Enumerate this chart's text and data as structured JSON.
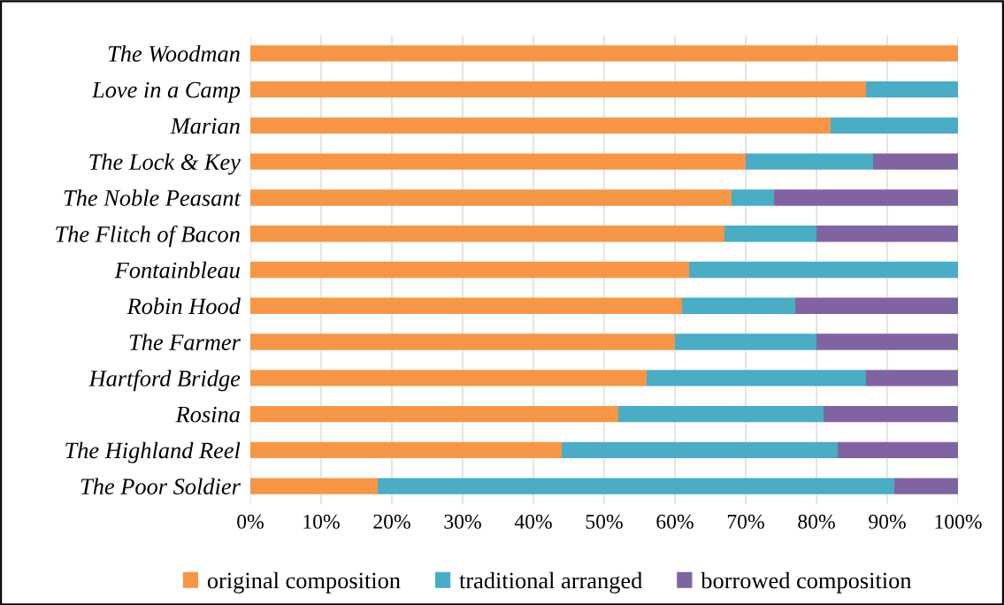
{
  "chart_data": {
    "type": "bar",
    "orientation": "horizontal",
    "stacked": true,
    "categories": [
      "The Woodman",
      "Love in a Camp",
      "Marian",
      "The Lock & Key",
      "The Noble Peasant",
      "The Flitch of Bacon",
      "Fontainbleau",
      "Robin Hood",
      "The Farmer",
      "Hartford Bridge",
      "Rosina",
      "The Highland Reel",
      "The Poor Soldier"
    ],
    "series": [
      {
        "name": "original composition",
        "color": "#f79646",
        "values": [
          100,
          87,
          82,
          70,
          68,
          67,
          62,
          61,
          60,
          56,
          52,
          44,
          18
        ]
      },
      {
        "name": "traditional arranged",
        "color": "#4bacc6",
        "values": [
          0,
          13,
          18,
          18,
          6,
          13,
          38,
          16,
          20,
          31,
          29,
          39,
          73
        ]
      },
      {
        "name": "borrowed composition",
        "color": "#8064a2",
        "values": [
          0,
          0,
          0,
          12,
          26,
          20,
          0,
          23,
          20,
          13,
          19,
          17,
          9
        ]
      }
    ],
    "xlim": [
      0,
      100
    ],
    "xticks": [
      {
        "value": 0,
        "label": "0%"
      },
      {
        "value": 10,
        "label": "10%"
      },
      {
        "value": 20,
        "label": "20%"
      },
      {
        "value": 30,
        "label": "30%"
      },
      {
        "value": 40,
        "label": "40%"
      },
      {
        "value": 50,
        "label": "50%"
      },
      {
        "value": 60,
        "label": "60%"
      },
      {
        "value": 70,
        "label": "70%"
      },
      {
        "value": 80,
        "label": "80%"
      },
      {
        "value": 90,
        "label": "90%"
      },
      {
        "value": 100,
        "label": "100%"
      }
    ],
    "grid": "x",
    "legend": "bottom"
  }
}
